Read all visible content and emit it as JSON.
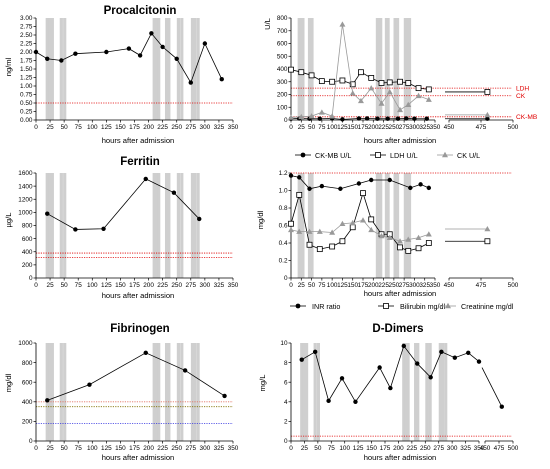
{
  "chart_data": [
    {
      "id": "procalcitonin",
      "type": "line",
      "title": "Procalcitonin",
      "xlabel": "hours after admission",
      "ylabel": "ng/ml",
      "xlim": [
        0,
        350
      ],
      "ylim": [
        0,
        3.0
      ],
      "xticks": [
        0,
        25,
        50,
        75,
        100,
        125,
        150,
        175,
        200,
        225,
        250,
        275,
        300,
        325,
        350
      ],
      "yticks": [
        0.0,
        0.25,
        0.5,
        0.75,
        1.0,
        1.25,
        1.5,
        1.75,
        2.0,
        2.25,
        2.5,
        2.75,
        3.0
      ],
      "ytick_labels": [
        "0.00",
        "0.25",
        "0.50",
        "0.75",
        "1.00",
        "1.25",
        "1.50",
        "1.75",
        "2.00",
        "2.25",
        "2.50",
        "2.75",
        "3.00"
      ],
      "shaded_x": [
        20,
        25,
        29,
        45,
        51,
        210,
        214,
        218,
        232,
        236,
        253,
        259,
        278,
        282,
        288
      ],
      "series": [
        {
          "marker": "circle-filled",
          "x": [
            0,
            20,
            45,
            70,
            125,
            165,
            185,
            205,
            225,
            250,
            275,
            300,
            330
          ],
          "y": [
            2.0,
            1.8,
            1.75,
            1.95,
            2.0,
            2.1,
            1.9,
            2.55,
            2.15,
            1.8,
            1.1,
            2.25,
            1.2
          ]
        }
      ],
      "ref_lines": [
        {
          "y": 0.5,
          "color": "#e00000",
          "style": "dotted"
        }
      ]
    },
    {
      "id": "enzymes",
      "type": "line",
      "title": "",
      "xlabel": "hours after admission",
      "ylabel": "U/L",
      "xlim": [
        0,
        350
      ],
      "xlim_break": [
        450,
        500
      ],
      "ylim": [
        0,
        800
      ],
      "xticks": [
        0,
        25,
        50,
        75,
        100,
        125,
        150,
        175,
        200,
        225,
        250,
        275,
        300,
        325,
        350
      ],
      "xticks_break": [
        450,
        475,
        500
      ],
      "yticks": [
        0,
        100,
        200,
        300,
        400,
        500,
        600,
        700,
        800
      ],
      "ytick_labels": [
        "0",
        "100",
        "200",
        "300",
        "400",
        "500",
        "600",
        "700",
        "800"
      ],
      "shaded_x": [
        20,
        25,
        29,
        45,
        51,
        210,
        214,
        218,
        232,
        236,
        253,
        259,
        278,
        282,
        288
      ],
      "series": [
        {
          "name": "CK-MB U/L",
          "marker": "circle-filled",
          "x": [
            0,
            20,
            45,
            70,
            100,
            125,
            165,
            185,
            210,
            235,
            260,
            280,
            300,
            330,
            480
          ],
          "y": [
            10,
            12,
            10,
            10,
            12,
            5,
            12,
            12,
            10,
            10,
            10,
            12,
            10,
            10,
            10
          ]
        },
        {
          "name": "LDH U/L",
          "marker": "square-open",
          "x": [
            0,
            25,
            50,
            75,
            100,
            125,
            150,
            170,
            195,
            220,
            240,
            265,
            285,
            310,
            335,
            480
          ],
          "y": [
            395,
            375,
            350,
            305,
            300,
            310,
            280,
            375,
            330,
            290,
            295,
            300,
            290,
            250,
            240,
            220
          ]
        },
        {
          "name": "CK U/L",
          "marker": "triangle-filled",
          "x": [
            0,
            25,
            50,
            75,
            100,
            125,
            150,
            170,
            195,
            220,
            240,
            265,
            285,
            310,
            335,
            480
          ],
          "y": [
            20,
            25,
            30,
            60,
            30,
            750,
            210,
            150,
            250,
            130,
            220,
            80,
            120,
            190,
            160,
            40
          ]
        }
      ],
      "ref_lines": [
        {
          "y": 250,
          "color": "#e00000",
          "style": "dotted",
          "label": "LDH"
        },
        {
          "y": 190,
          "color": "#e00000",
          "style": "dotted",
          "label": "CK"
        },
        {
          "y": 25,
          "color": "#e00000",
          "style": "dotted",
          "label": "CK-MB"
        }
      ],
      "legend": "bottom"
    },
    {
      "id": "ferritin",
      "type": "line",
      "title": "Ferritin",
      "xlabel": "hours after admission",
      "ylabel": "µg/L",
      "xlim": [
        0,
        350
      ],
      "ylim": [
        0,
        1600
      ],
      "xticks": [
        0,
        25,
        50,
        75,
        100,
        125,
        150,
        175,
        200,
        225,
        250,
        275,
        300,
        325,
        350
      ],
      "yticks": [
        0,
        200,
        400,
        600,
        800,
        1000,
        1200,
        1400,
        1600
      ],
      "ytick_labels": [
        "0",
        "200",
        "400",
        "600",
        "800",
        "1000",
        "1200",
        "1400",
        "1600"
      ],
      "shaded_x": [
        20,
        25,
        29,
        45,
        51,
        210,
        214,
        218,
        232,
        236,
        253,
        259,
        278,
        282,
        288
      ],
      "series": [
        {
          "marker": "circle-filled",
          "x": [
            20,
            70,
            120,
            195,
            245,
            290
          ],
          "y": [
            980,
            740,
            750,
            1510,
            1300,
            900
          ]
        }
      ],
      "ref_lines": [
        {
          "y": 380,
          "color": "#e00000",
          "style": "dotted"
        },
        {
          "y": 310,
          "color": "#e00000",
          "style": "dotted"
        }
      ]
    },
    {
      "id": "liver-renal",
      "type": "line",
      "title": "",
      "xlabel": "hours after admission",
      "ylabel": "mg/dl",
      "xlim": [
        0,
        350
      ],
      "xlim_break": [
        450,
        500
      ],
      "ylim": [
        0,
        1.2
      ],
      "xticks": [
        0,
        25,
        50,
        75,
        100,
        125,
        150,
        175,
        200,
        225,
        250,
        275,
        300,
        325,
        350
      ],
      "xticks_break": [
        450,
        475,
        500
      ],
      "yticks": [
        0,
        0.2,
        0.4,
        0.6,
        0.8,
        1.0,
        1.2
      ],
      "ytick_labels": [
        "0",
        "0.2",
        "0.4",
        "0.6",
        "0.8",
        "1.0",
        "1.2"
      ],
      "shaded_x": [
        20,
        25,
        29,
        45,
        51,
        210,
        214,
        218,
        232,
        236,
        253,
        259,
        278,
        282,
        288
      ],
      "series": [
        {
          "name": "INR ratio",
          "marker": "circle-filled",
          "x": [
            0,
            20,
            45,
            75,
            120,
            165,
            195,
            240,
            290,
            315,
            335
          ],
          "y": [
            1.17,
            1.15,
            1.02,
            1.05,
            1.02,
            1.08,
            1.12,
            1.12,
            1.03,
            1.07,
            1.03
          ]
        },
        {
          "name": "Bilirubin mg/dl",
          "marker": "square-open",
          "x": [
            0,
            20,
            45,
            70,
            100,
            125,
            150,
            175,
            195,
            220,
            240,
            265,
            285,
            310,
            335,
            480
          ],
          "y": [
            0.62,
            0.95,
            0.38,
            0.33,
            0.36,
            0.42,
            0.58,
            0.97,
            0.67,
            0.5,
            0.5,
            0.35,
            0.31,
            0.34,
            0.4,
            0.42
          ]
        },
        {
          "name": "Creatinine mg/dl",
          "marker": "triangle-filled",
          "x": [
            0,
            20,
            45,
            70,
            100,
            125,
            150,
            175,
            195,
            220,
            240,
            265,
            285,
            310,
            335,
            480
          ],
          "y": [
            0.55,
            0.53,
            0.53,
            0.53,
            0.52,
            0.62,
            0.63,
            0.66,
            0.55,
            0.48,
            0.46,
            0.42,
            0.44,
            0.46,
            0.5,
            0.56
          ]
        }
      ],
      "ref_lines": [
        {
          "y": 1.2,
          "color": "#e00000",
          "style": "dotted"
        }
      ],
      "legend": "bottom"
    },
    {
      "id": "fibrinogen",
      "type": "line",
      "title": "Fibrinogen",
      "xlabel": "hours after admission",
      "ylabel": "mg/dl",
      "xlim": [
        0,
        350
      ],
      "ylim": [
        0,
        1000
      ],
      "xticks": [
        0,
        25,
        50,
        75,
        100,
        125,
        150,
        175,
        200,
        225,
        250,
        275,
        300,
        325,
        350
      ],
      "yticks": [
        0,
        200,
        400,
        600,
        800,
        1000
      ],
      "ytick_labels": [
        "0",
        "200",
        "400",
        "600",
        "800",
        "1000"
      ],
      "shaded_x": [
        20,
        25,
        29,
        45,
        51,
        210,
        214,
        218,
        232,
        236,
        253,
        259,
        278,
        282,
        288
      ],
      "series": [
        {
          "marker": "circle-filled",
          "x": [
            20,
            95,
            195,
            265,
            335
          ],
          "y": [
            415,
            575,
            900,
            720,
            460
          ]
        }
      ],
      "ref_lines": [
        {
          "y": 400,
          "color": "#e07060",
          "style": "dotted"
        },
        {
          "y": 350,
          "color": "#807000",
          "style": "dotted"
        },
        {
          "y": 180,
          "color": "#3030e0",
          "style": "dotted"
        }
      ]
    },
    {
      "id": "d-dimers",
      "type": "line",
      "title": "D-Dimers",
      "xlabel": "hours after admission",
      "ylabel": "mg/L",
      "xlim": [
        0,
        350
      ],
      "xlim_break": [
        450,
        500
      ],
      "ylim": [
        0,
        10
      ],
      "xticks": [
        0,
        25,
        50,
        75,
        100,
        125,
        150,
        175,
        200,
        225,
        250,
        275,
        300,
        325,
        350
      ],
      "xticks_break": [
        450,
        475,
        500
      ],
      "yticks": [
        0,
        2,
        4,
        6,
        8,
        10
      ],
      "ytick_labels": [
        "0",
        "2",
        "4",
        "6",
        "8",
        "10"
      ],
      "shaded_x": [
        20,
        25,
        29,
        45,
        51,
        210,
        214,
        218,
        232,
        236,
        253,
        259,
        278,
        282,
        288
      ],
      "series": [
        {
          "marker": "circle-filled",
          "x": [
            20,
            45,
            70,
            95,
            120,
            165,
            185,
            210,
            235,
            260,
            280,
            305,
            330,
            350,
            480
          ],
          "y": [
            8.3,
            9.1,
            4.1,
            6.4,
            4.0,
            7.5,
            5.4,
            9.7,
            7.9,
            6.5,
            9.1,
            8.5,
            9.0,
            8.1,
            3.5
          ]
        }
      ],
      "ref_lines": [
        {
          "y": 0.5,
          "color": "#e00000",
          "style": "dotted"
        }
      ]
    }
  ]
}
